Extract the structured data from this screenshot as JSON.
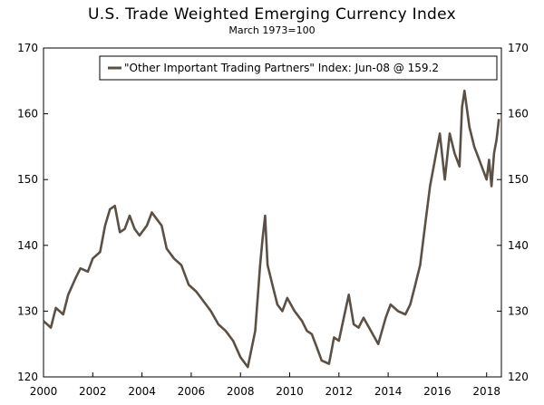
{
  "chart_data": {
    "type": "line",
    "title": "U.S. Trade Weighted Emerging Currency Index",
    "subtitle": "March 1973=100",
    "xlabel": "",
    "ylabel": "",
    "xlim": [
      2000,
      2018.6
    ],
    "ylim": [
      120,
      170
    ],
    "x_ticks": [
      "2000",
      "2002",
      "2004",
      "2006",
      "2008",
      "2010",
      "2012",
      "2014",
      "2016",
      "2018"
    ],
    "y_ticks_left": [
      "120",
      "130",
      "140",
      "150",
      "160",
      "170"
    ],
    "y_ticks_right": [
      "120",
      "130",
      "140",
      "150",
      "160",
      "170"
    ],
    "grid": false,
    "legend_position": "top-right",
    "colors": {
      "series": "#5b5045"
    },
    "series": [
      {
        "name": "\"Other Important Trading Partners\" Index: Jun-08 @ 159.2",
        "x": [
          2000.0,
          2000.3,
          2000.5,
          2000.8,
          2001.0,
          2001.3,
          2001.5,
          2001.8,
          2002.0,
          2002.3,
          2002.5,
          2002.7,
          2002.9,
          2003.1,
          2003.3,
          2003.5,
          2003.7,
          2003.9,
          2004.2,
          2004.4,
          2004.6,
          2004.8,
          2005.0,
          2005.3,
          2005.6,
          2005.9,
          2006.2,
          2006.5,
          2006.8,
          2007.1,
          2007.4,
          2007.7,
          2008.0,
          2008.3,
          2008.6,
          2008.8,
          2008.9,
          2009.0,
          2009.1,
          2009.3,
          2009.5,
          2009.7,
          2009.9,
          2010.2,
          2010.5,
          2010.7,
          2010.9,
          2011.1,
          2011.3,
          2011.6,
          2011.8,
          2012.0,
          2012.2,
          2012.4,
          2012.6,
          2012.8,
          2013.0,
          2013.3,
          2013.6,
          2013.9,
          2014.1,
          2014.4,
          2014.7,
          2014.9,
          2015.1,
          2015.3,
          2015.5,
          2015.7,
          2015.9,
          2016.1,
          2016.3,
          2016.5,
          2016.7,
          2016.9,
          2017.0,
          2017.1,
          2017.3,
          2017.5,
          2017.7,
          2017.9,
          2018.0,
          2018.1,
          2018.2,
          2018.3,
          2018.4,
          2018.5
        ],
        "values": [
          128.5,
          127.5,
          130.5,
          129.5,
          132.5,
          135,
          136.5,
          136,
          138,
          139,
          143,
          145.5,
          146,
          142,
          142.5,
          144.5,
          142.5,
          141.5,
          143,
          145,
          144,
          143,
          139.5,
          138,
          137,
          134,
          133,
          131.5,
          130,
          128,
          127,
          125.5,
          123,
          121.5,
          127,
          137,
          141,
          144.5,
          137,
          134,
          131,
          130,
          132,
          130,
          128.5,
          127,
          126.5,
          124.5,
          122.5,
          122,
          126,
          125.5,
          129,
          132.5,
          128,
          127.5,
          129,
          127,
          125,
          129,
          131,
          130,
          129.5,
          131,
          134,
          137,
          143,
          149,
          153,
          157,
          150,
          157,
          154,
          152,
          161,
          163.5,
          158,
          155,
          153,
          151,
          150,
          153,
          149,
          154,
          156,
          159.2
        ]
      }
    ]
  }
}
